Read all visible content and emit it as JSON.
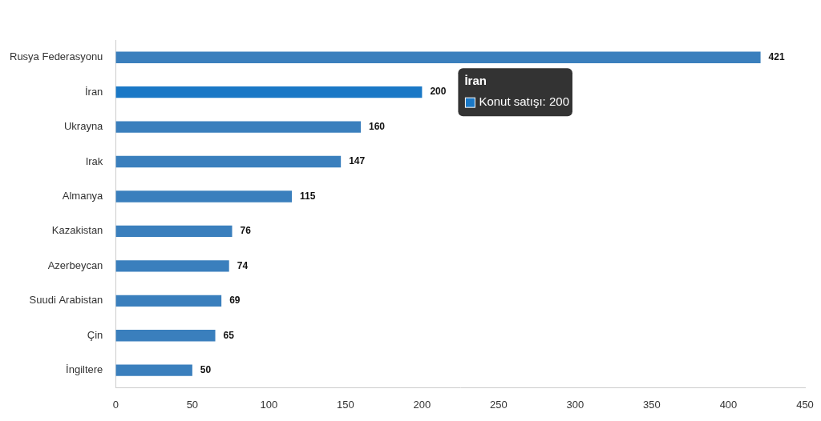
{
  "chart_data": {
    "type": "bar",
    "orientation": "horizontal",
    "categories": [
      "Rusya Federasyonu",
      "İran",
      "Ukrayna",
      "Irak",
      "Almanya",
      "Kazakistan",
      "Azerbeycan",
      "Suudi Arabistan",
      "Çin",
      "İngiltere"
    ],
    "values": [
      421,
      200,
      160,
      147,
      115,
      76,
      74,
      69,
      65,
      50
    ],
    "colors": [
      "#3a7fbd",
      "#1a78c6",
      "#3a7fbd",
      "#3a7fbd",
      "#3a7fbd",
      "#3a7fbd",
      "#3a7fbd",
      "#3a7fbd",
      "#3a7fbd",
      "#3a7fbd"
    ],
    "xlim": [
      0,
      450
    ],
    "xticks": [
      0,
      50,
      100,
      150,
      200,
      250,
      300,
      350,
      400,
      450
    ],
    "grid": false,
    "data_labels": true,
    "annotations": [
      {
        "category": "İran",
        "title": "İran",
        "text": "Konut satışı: 200"
      }
    ]
  }
}
